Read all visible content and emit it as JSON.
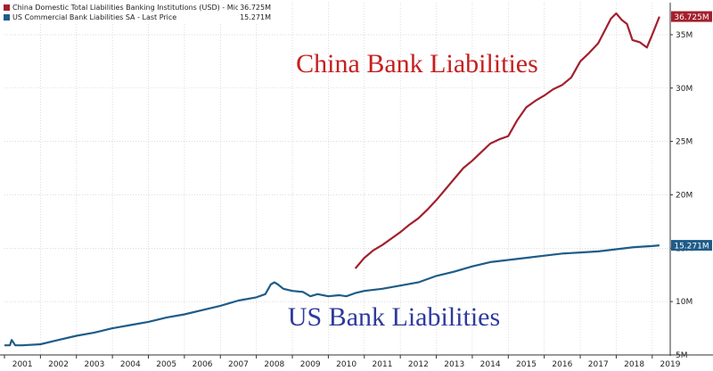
{
  "chart_data": {
    "type": "line",
    "title": "",
    "xlabel": "",
    "ylabel": "",
    "ylim": [
      5,
      38
    ],
    "xlim": [
      2001.0,
      2019.5
    ],
    "y_ticks": [
      5,
      10,
      15,
      20,
      25,
      30,
      35
    ],
    "y_tick_labels": [
      "5M",
      "10M",
      "15M",
      "20M",
      "25M",
      "30M",
      "35M"
    ],
    "x_tick_labels": [
      "2001",
      "2002",
      "2003",
      "2004",
      "2005",
      "2006",
      "2007",
      "2008",
      "2009",
      "2010",
      "2011",
      "2012",
      "2013",
      "2014",
      "2015",
      "2016",
      "2017",
      "2018",
      "2019"
    ],
    "grid": true,
    "y_axis_side": "right",
    "legend_position": "top-left",
    "series": [
      {
        "name": "China Domestic Total Liabilities Banking Institutions (USD) - Mid Price",
        "last_value_label": "36.725M",
        "color": "#a3202d",
        "x": [
          2010.75,
          2011.0,
          2011.25,
          2011.5,
          2011.75,
          2012.0,
          2012.25,
          2012.5,
          2012.75,
          2013.0,
          2013.25,
          2013.5,
          2013.75,
          2014.0,
          2014.25,
          2014.5,
          2014.75,
          2015.0,
          2015.25,
          2015.5,
          2015.75,
          2016.0,
          2016.25,
          2016.5,
          2016.75,
          2017.0,
          2017.25,
          2017.5,
          2017.7,
          2017.85,
          2018.0,
          2018.15,
          2018.3,
          2018.45,
          2018.65,
          2018.85,
          2019.0,
          2019.2
        ],
        "y": [
          13.1,
          14.1,
          14.8,
          15.3,
          15.9,
          16.5,
          17.2,
          17.8,
          18.6,
          19.5,
          20.5,
          21.5,
          22.5,
          23.2,
          24.0,
          24.8,
          25.2,
          25.5,
          27.0,
          28.2,
          28.8,
          29.3,
          29.9,
          30.3,
          31.0,
          32.5,
          33.3,
          34.2,
          35.5,
          36.5,
          37.0,
          36.4,
          36.0,
          34.5,
          34.3,
          33.8,
          35.0,
          36.7
        ]
      },
      {
        "name": "US Commercial Bank Liabilities SA - Last Price",
        "last_value_label": "15.271M",
        "color": "#1f5c88",
        "x": [
          2001.0,
          2001.15,
          2001.2,
          2001.3,
          2001.5,
          2002.0,
          2002.5,
          2003.0,
          2003.5,
          2004.0,
          2004.5,
          2005.0,
          2005.5,
          2006.0,
          2006.5,
          2007.0,
          2007.5,
          2008.0,
          2008.25,
          2008.4,
          2008.5,
          2008.6,
          2008.75,
          2009.0,
          2009.3,
          2009.5,
          2009.7,
          2010.0,
          2010.3,
          2010.5,
          2010.75,
          2011.0,
          2011.5,
          2012.0,
          2012.5,
          2013.0,
          2013.5,
          2014.0,
          2014.5,
          2015.0,
          2015.5,
          2016.0,
          2016.5,
          2017.0,
          2017.5,
          2018.0,
          2018.5,
          2019.0,
          2019.2
        ],
        "y": [
          5.9,
          5.9,
          6.4,
          5.9,
          5.9,
          6.0,
          6.4,
          6.8,
          7.1,
          7.5,
          7.8,
          8.1,
          8.5,
          8.8,
          9.2,
          9.6,
          10.1,
          10.4,
          10.7,
          11.6,
          11.8,
          11.6,
          11.2,
          11.0,
          10.9,
          10.5,
          10.7,
          10.5,
          10.6,
          10.5,
          10.8,
          11.0,
          11.2,
          11.5,
          11.8,
          12.4,
          12.8,
          13.3,
          13.7,
          13.9,
          14.1,
          14.3,
          14.5,
          14.6,
          14.7,
          14.9,
          15.1,
          15.2,
          15.27
        ]
      }
    ],
    "annotations": [
      {
        "text": "China Bank Liabilities",
        "color": "#c51f1f"
      },
      {
        "text": "US Bank Liabilities",
        "color": "#2e3a9c"
      }
    ]
  }
}
